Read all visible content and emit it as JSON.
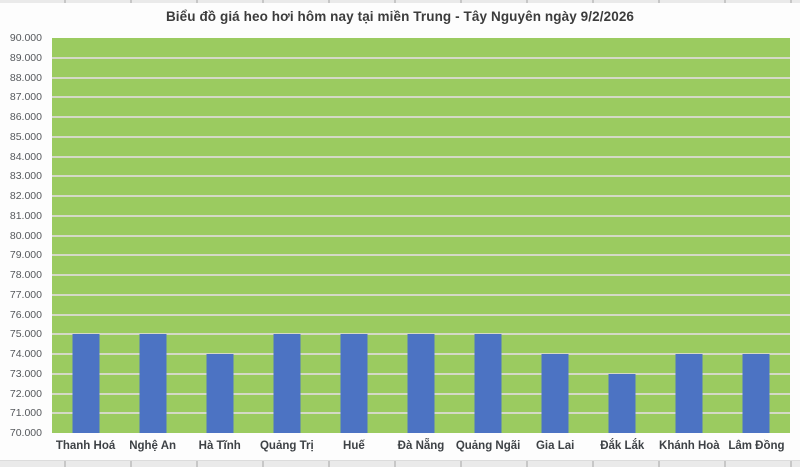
{
  "chart_data": {
    "type": "bar",
    "title": "Biểu đồ giá heo hơi hôm nay tại miền Trung - Tây Nguyên ngày 9/2/2026",
    "categories": [
      "Thanh Hoá",
      "Nghệ An",
      "Hà Tĩnh",
      "Quảng Trị",
      "Huế",
      "Đà Nẵng",
      "Quảng Ngãi",
      "Gia Lai",
      "Đắk Lắk",
      "Khánh Hoà",
      "Lâm Đồng"
    ],
    "values": [
      75000,
      75000,
      74000,
      75000,
      75000,
      75000,
      75000,
      74000,
      73000,
      74000,
      74000
    ],
    "xlabel": "",
    "ylabel": "",
    "ylim": [
      70000,
      90000
    ],
    "ytick_step": 1000,
    "ytick_labels": [
      "90.000",
      "89.000",
      "88.000",
      "87.000",
      "86.000",
      "85.000",
      "84.000",
      "83.000",
      "82.000",
      "81.000",
      "80.000",
      "79.000",
      "78.000",
      "77.000",
      "76.000",
      "75.000",
      "74.000",
      "73.000",
      "72.000",
      "71.000",
      "70.000"
    ],
    "grid": true,
    "legend": "none",
    "colors": {
      "bar": "#4C73C3",
      "plot_background": "#9BCB60",
      "gridline": "#D4D9C6",
      "title_text": "#3C3C3C",
      "ytick_text": "#55585C",
      "xtick_text": "#3E4246",
      "page_background": "#FDFDFD"
    }
  }
}
